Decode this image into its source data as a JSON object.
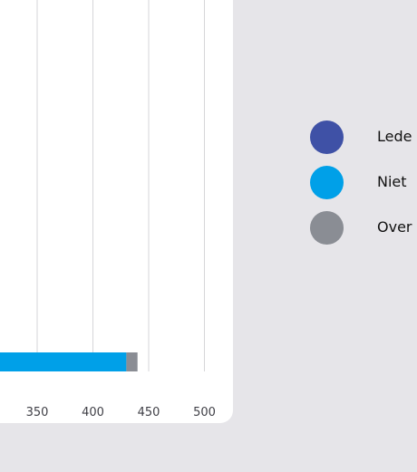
{
  "chart_data": {
    "type": "bar",
    "orientation": "horizontal",
    "stacked": true,
    "x_ticks": [
      350,
      400,
      450,
      500
    ],
    "xlim_visible": [
      310,
      530
    ],
    "grid": true,
    "legend_position": "right",
    "series": [
      {
        "name": "Lede",
        "color": "#3f51a6"
      },
      {
        "name": "Niet",
        "color": "#00a0e8",
        "value_end": 430
      },
      {
        "name": "Over",
        "color": "#8a8d94",
        "value_end": 440
      }
    ]
  }
}
